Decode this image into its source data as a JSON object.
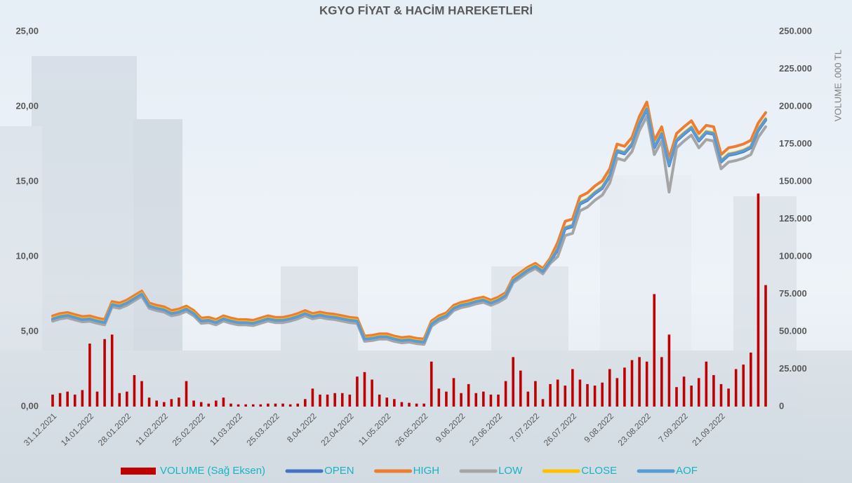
{
  "chart_data": {
    "type": "combo",
    "title": "KGYO FİYAT & HACİM HAREKETLERİ",
    "y2_label": "VOLUME .000 TL",
    "categories": [
      "31.12.2021",
      null,
      null,
      null,
      null,
      "14.01.2022",
      null,
      null,
      null,
      null,
      "28.01.2022",
      null,
      null,
      null,
      null,
      "11.02.2022",
      null,
      null,
      null,
      null,
      "25.02.2022",
      null,
      null,
      null,
      null,
      "11.03.2022",
      null,
      null,
      null,
      null,
      "25.03.2022",
      null,
      null,
      null,
      null,
      "8.04.2022",
      null,
      null,
      null,
      null,
      "22.04.2022",
      null,
      null,
      null,
      null,
      "11.05.2022",
      null,
      null,
      null,
      null,
      "26.05.2022",
      null,
      null,
      null,
      null,
      "9.06.2022",
      null,
      null,
      null,
      null,
      "23.06.2022",
      null,
      null,
      null,
      null,
      "7.07.2022",
      null,
      null,
      null,
      null,
      "26.07.2022",
      null,
      null,
      null,
      null,
      "9.08.2022",
      null,
      null,
      null,
      null,
      "23.08.2022",
      null,
      null,
      null,
      null,
      "7.09.2022",
      null,
      null,
      null,
      null,
      "21.09.2022",
      null,
      null,
      null,
      null,
      null,
      null
    ],
    "ylim": [
      0,
      25
    ],
    "yticks": [
      {
        "value": 0,
        "label": "0,00"
      },
      {
        "value": 5,
        "label": "5,00"
      },
      {
        "value": 10,
        "label": "10,00"
      },
      {
        "value": 15,
        "label": "15,00"
      },
      {
        "value": 20,
        "label": "20,00"
      },
      {
        "value": 25,
        "label": "25,00"
      }
    ],
    "y2lim": [
      0,
      250000
    ],
    "y2ticks": [
      0,
      {
        "value": 25000,
        "label": "25.000"
      },
      {
        "value": 50000,
        "label": "50.000"
      },
      {
        "value": 75000,
        "label": "75.000"
      },
      {
        "value": 100000,
        "label": "100.000"
      },
      {
        "value": 125000,
        "label": "125.000"
      },
      {
        "value": 150000,
        "label": "150.000"
      },
      {
        "value": 175000,
        "label": "175.000"
      },
      {
        "value": 200000,
        "label": "200.000"
      },
      {
        "value": 225000,
        "label": "225.000"
      },
      {
        "value": 250000,
        "label": "250.000"
      }
    ],
    "series": [
      {
        "name": "VOLUME (Sağ Eksen)",
        "type": "bar",
        "axis": "y2",
        "color": "#c00000",
        "values": [
          8000,
          9000,
          10000,
          8000,
          11000,
          42000,
          10000,
          45000,
          48000,
          9000,
          10000,
          21000,
          17000,
          6000,
          4000,
          3000,
          5000,
          6000,
          17000,
          4000,
          3000,
          2000,
          4000,
          6000,
          2000,
          1500,
          1500,
          1500,
          1500,
          2000,
          2000,
          2000,
          1500,
          2000,
          5000,
          12000,
          8000,
          8000,
          9000,
          9000,
          8000,
          20000,
          23000,
          18000,
          8000,
          6000,
          5000,
          3000,
          2500,
          2000,
          2000,
          30000,
          12000,
          10000,
          19000,
          9000,
          15000,
          9000,
          10000,
          8000,
          8000,
          17000,
          33000,
          24000,
          10000,
          17000,
          5000,
          15000,
          18000,
          14000,
          25000,
          18000,
          15000,
          14000,
          16000,
          25000,
          19000,
          26000,
          31000,
          33000,
          30000,
          75000,
          33000,
          48000,
          13000,
          20000,
          14000,
          19000,
          30000,
          21000,
          15000,
          12000,
          25000,
          28000,
          36000,
          142000,
          81000
        ]
      },
      {
        "name": "OPEN",
        "type": "line",
        "color": "#4472c4",
        "values": [
          5.79,
          5.95,
          6.02,
          5.88,
          5.75,
          5.79,
          5.65,
          5.55,
          6.75,
          6.65,
          6.85,
          7.15,
          7.45,
          6.65,
          6.5,
          6.4,
          6.15,
          6.25,
          6.45,
          6.15,
          5.65,
          5.7,
          5.55,
          5.8,
          5.65,
          5.55,
          5.55,
          5.5,
          5.65,
          5.8,
          5.7,
          5.7,
          5.8,
          5.95,
          6.15,
          5.95,
          6.05,
          5.95,
          5.9,
          5.8,
          5.7,
          5.65,
          4.45,
          4.5,
          4.6,
          4.6,
          4.45,
          4.35,
          4.4,
          4.3,
          4.25,
          5.45,
          5.8,
          6.0,
          6.5,
          6.7,
          6.8,
          6.95,
          7.05,
          6.85,
          7.05,
          7.35,
          8.35,
          8.7,
          9.05,
          9.3,
          8.95,
          9.65,
          10.45,
          11.85,
          12.0,
          13.5,
          13.75,
          14.2,
          14.55,
          15.35,
          17.0,
          16.85,
          17.45,
          18.85,
          19.8,
          17.25,
          18.15,
          16.05,
          17.7,
          18.15,
          18.55,
          17.7,
          18.25,
          18.15,
          16.3,
          16.75,
          16.85,
          17.0,
          17.25,
          18.4,
          19.1
        ]
      },
      {
        "name": "HIGH",
        "type": "line",
        "color": "#ed7d31",
        "values": [
          6.04,
          6.2,
          6.27,
          6.13,
          6.0,
          6.04,
          5.9,
          5.8,
          7.0,
          6.9,
          7.1,
          7.4,
          7.7,
          6.9,
          6.75,
          6.65,
          6.4,
          6.5,
          6.7,
          6.4,
          5.9,
          5.95,
          5.8,
          6.05,
          5.9,
          5.8,
          5.8,
          5.75,
          5.9,
          6.05,
          5.95,
          5.95,
          6.05,
          6.2,
          6.4,
          6.2,
          6.3,
          6.2,
          6.15,
          6.05,
          5.95,
          5.9,
          4.7,
          4.75,
          4.85,
          4.85,
          4.7,
          4.6,
          4.65,
          4.55,
          4.5,
          5.7,
          6.05,
          6.25,
          6.75,
          6.95,
          7.05,
          7.2,
          7.3,
          7.1,
          7.3,
          7.6,
          8.6,
          8.95,
          9.3,
          9.55,
          9.2,
          9.9,
          10.95,
          12.35,
          12.5,
          14.0,
          14.25,
          14.7,
          15.05,
          15.85,
          17.5,
          17.35,
          17.95,
          19.35,
          20.3,
          17.75,
          18.65,
          16.55,
          18.2,
          18.65,
          19.05,
          18.2,
          18.75,
          18.65,
          16.8,
          17.25,
          17.35,
          17.5,
          17.75,
          18.9,
          19.6
        ]
      },
      {
        "name": "LOW",
        "type": "line",
        "color": "#a5a5a5",
        "values": [
          5.69,
          5.85,
          5.92,
          5.78,
          5.65,
          5.69,
          5.55,
          5.45,
          6.65,
          6.55,
          6.75,
          7.05,
          7.35,
          6.55,
          6.4,
          6.3,
          6.05,
          6.15,
          6.35,
          6.05,
          5.55,
          5.6,
          5.45,
          5.7,
          5.55,
          5.45,
          5.45,
          5.4,
          5.55,
          5.7,
          5.6,
          5.6,
          5.7,
          5.85,
          6.05,
          5.85,
          5.95,
          5.85,
          5.8,
          5.7,
          5.6,
          5.55,
          4.35,
          4.4,
          4.5,
          4.5,
          4.35,
          4.25,
          4.3,
          4.2,
          4.15,
          5.35,
          5.7,
          5.9,
          6.4,
          6.6,
          6.7,
          6.85,
          6.95,
          6.75,
          6.95,
          7.25,
          8.25,
          8.6,
          8.95,
          9.2,
          8.85,
          9.55,
          10.0,
          11.4,
          11.55,
          13.05,
          13.3,
          13.75,
          14.1,
          14.9,
          16.55,
          16.4,
          17.0,
          18.4,
          19.35,
          16.8,
          17.7,
          14.3,
          17.25,
          17.7,
          18.1,
          17.25,
          17.8,
          17.7,
          15.85,
          16.3,
          16.4,
          16.55,
          16.8,
          17.95,
          18.65
        ]
      },
      {
        "name": "CLOSE",
        "type": "line",
        "color": "#ffc000",
        "values": [
          5.89,
          6.05,
          6.12,
          5.98,
          5.85,
          5.89,
          5.75,
          5.65,
          6.85,
          6.75,
          6.95,
          7.25,
          7.55,
          6.75,
          6.6,
          6.5,
          6.25,
          6.35,
          6.55,
          6.25,
          5.75,
          5.8,
          5.65,
          5.9,
          5.75,
          5.65,
          5.65,
          5.6,
          5.75,
          5.9,
          5.8,
          5.8,
          5.9,
          6.05,
          6.25,
          6.05,
          6.15,
          6.05,
          6.0,
          5.9,
          5.8,
          5.75,
          4.55,
          4.6,
          4.7,
          4.7,
          4.55,
          4.45,
          4.5,
          4.4,
          4.35,
          5.55,
          5.9,
          6.1,
          6.6,
          6.8,
          6.9,
          7.05,
          7.15,
          6.95,
          7.15,
          7.45,
          8.45,
          8.8,
          9.15,
          9.4,
          9.05,
          9.75,
          10.55,
          11.95,
          12.1,
          13.6,
          13.85,
          14.3,
          14.65,
          15.45,
          17.1,
          16.95,
          17.55,
          18.95,
          19.9,
          17.35,
          18.25,
          16.15,
          17.8,
          18.25,
          18.65,
          17.8,
          18.35,
          18.25,
          16.4,
          16.85,
          16.95,
          17.1,
          17.35,
          18.5,
          19.2
        ]
      },
      {
        "name": "AOF",
        "type": "line",
        "color": "#5b9bd5",
        "values": [
          5.84,
          6.0,
          6.07,
          5.93,
          5.8,
          5.84,
          5.7,
          5.6,
          6.8,
          6.7,
          6.9,
          7.2,
          7.5,
          6.7,
          6.55,
          6.45,
          6.2,
          6.3,
          6.5,
          6.2,
          5.7,
          5.75,
          5.6,
          5.85,
          5.7,
          5.6,
          5.6,
          5.55,
          5.7,
          5.85,
          5.75,
          5.75,
          5.85,
          6.0,
          6.2,
          6.0,
          6.1,
          6.0,
          5.95,
          5.85,
          5.75,
          5.7,
          4.5,
          4.55,
          4.65,
          4.65,
          4.5,
          4.4,
          4.45,
          4.35,
          4.3,
          5.5,
          5.85,
          6.05,
          6.55,
          6.75,
          6.85,
          7.0,
          7.1,
          6.9,
          7.1,
          7.4,
          8.4,
          8.75,
          9.1,
          9.35,
          9.0,
          9.7,
          10.5,
          11.9,
          12.05,
          13.55,
          13.8,
          14.25,
          14.6,
          15.4,
          17.05,
          16.9,
          17.5,
          18.9,
          19.85,
          17.3,
          18.2,
          16.1,
          17.75,
          18.2,
          18.6,
          17.75,
          18.3,
          18.2,
          16.35,
          16.8,
          16.9,
          17.05,
          17.3,
          18.45,
          19.15
        ]
      }
    ],
    "legend": "bottom",
    "legend_text_color": "#19b3c4"
  }
}
